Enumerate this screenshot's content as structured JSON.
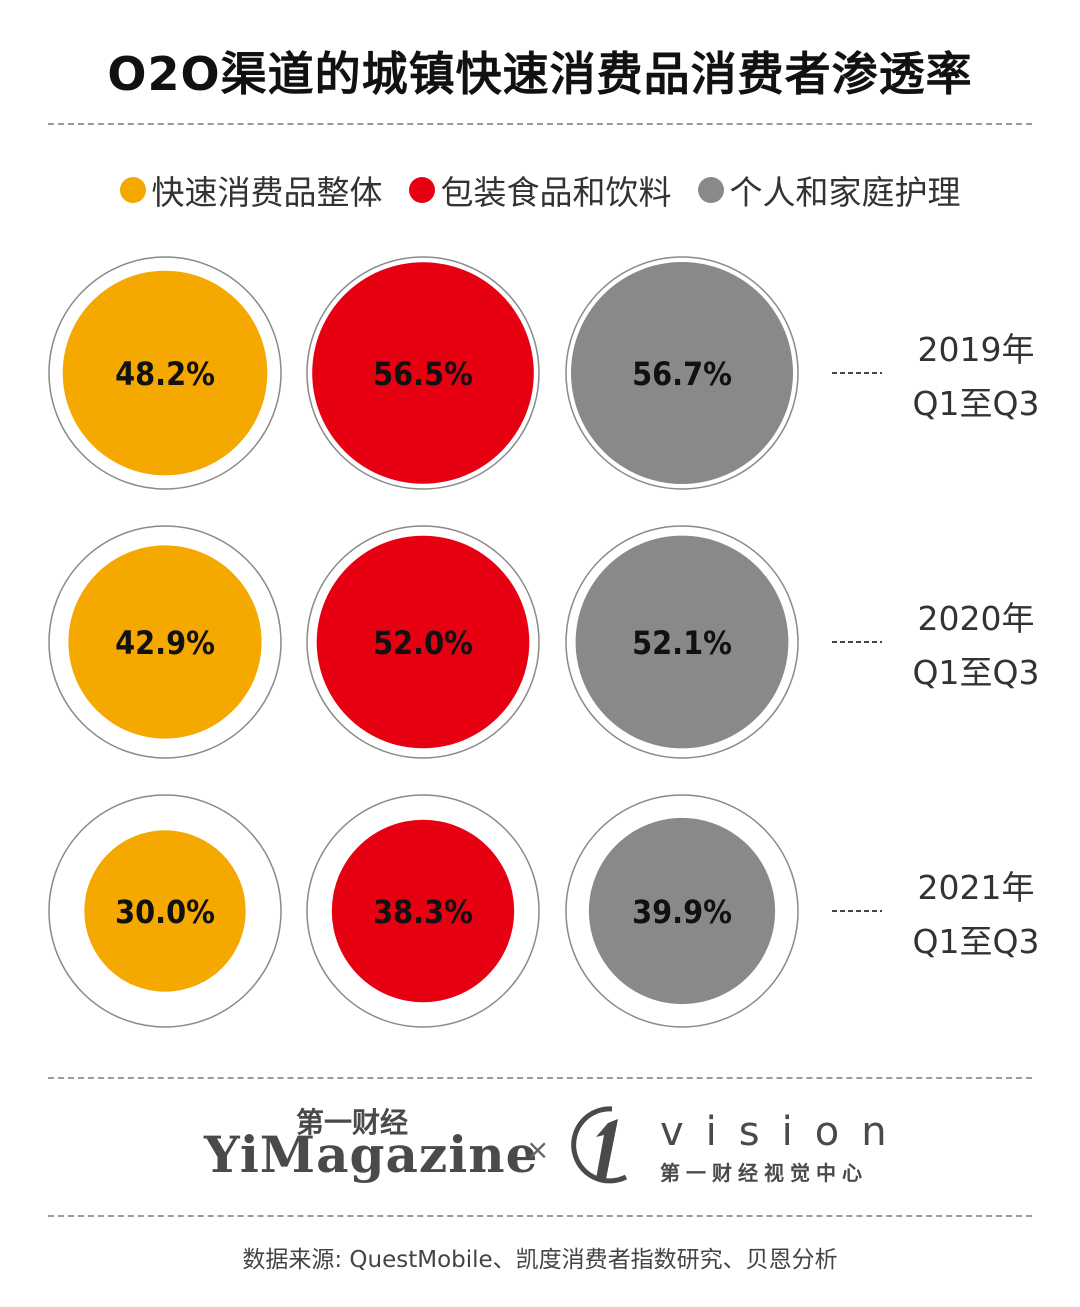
{
  "title": "O2O渠道的城镇快速消费品消费者渗透率",
  "legend": [
    {
      "label": "快速消费品整体",
      "color": "#f5a800"
    },
    {
      "label": "包装食品和饮料",
      "color": "#e60012"
    },
    {
      "label": "个人和家庭护理",
      "color": "#898989"
    }
  ],
  "chart_data": {
    "type": "bubble-grid",
    "unit": "%",
    "series": [
      {
        "name": "快速消费品整体",
        "color": "#f5a800"
      },
      {
        "name": "包装食品和饮料",
        "color": "#e60012"
      },
      {
        "name": "个人和家庭护理",
        "color": "#898989"
      }
    ],
    "rows": [
      {
        "year_label": "2019年",
        "period_label": "Q1至Q3",
        "values": [
          48.2,
          56.5,
          56.7
        ],
        "value_labels": [
          "48.2%",
          "56.5%",
          "56.7%"
        ]
      },
      {
        "year_label": "2020年",
        "period_label": "Q1至Q3",
        "values": [
          42.9,
          52.0,
          52.1
        ],
        "value_labels": [
          "42.9%",
          "52.0%",
          "52.1%"
        ]
      },
      {
        "year_label": "2021年",
        "period_label": "Q1至Q3",
        "values": [
          30.0,
          38.3,
          39.9
        ],
        "value_labels": [
          "30.0%",
          "38.3%",
          "39.9%"
        ]
      }
    ]
  },
  "logos": {
    "yimagazine_cn": "第一财经",
    "yimagazine_en": "YiMagazine",
    "cross": "×",
    "vision_en": "vision",
    "vision_cn": "第一财经视觉中心"
  },
  "source": "数据来源: QuestMobile、凯度消费者指数研究、贝恩分析"
}
